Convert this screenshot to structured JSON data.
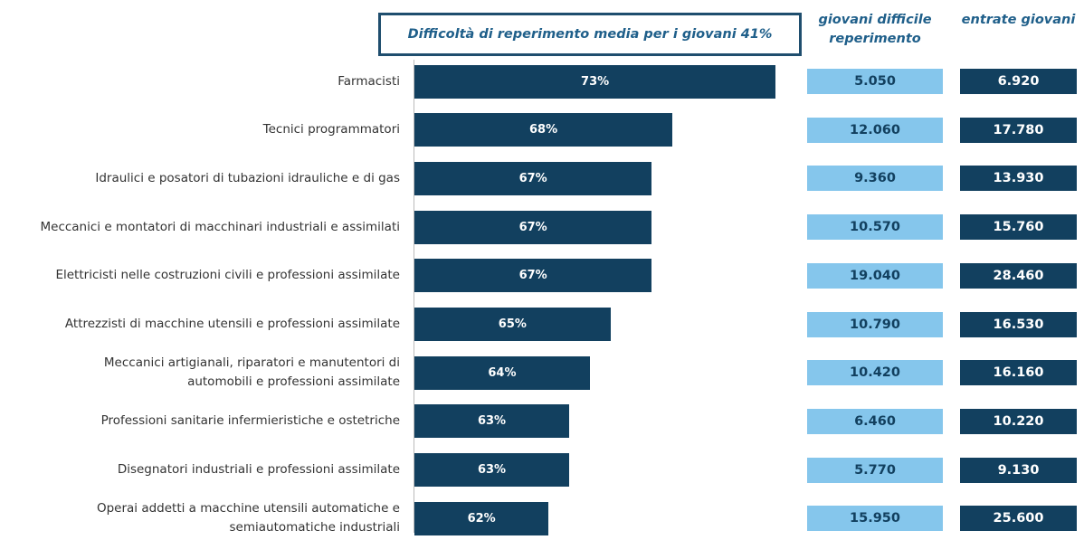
{
  "chart_data": {
    "type": "barh",
    "annotation": "Difficoltà di reperimento media per i giovani 41%",
    "categories": [
      "Farmacisti",
      "Tecnici programmatori",
      "Idraulici e posatori di tubazioni idrauliche e di gas",
      "Meccanici e montatori di macchinari industriali e assimilati",
      "Elettricisti nelle costruzioni civili e professioni assimilate",
      "Attrezzisti di macchine utensili e professioni assimilate",
      "Meccanici artigianali, riparatori e manutentori di automobili e professioni assimilate",
      "Professioni sanitarie infermieristiche e ostetriche",
      "Disegnatori industriali e professioni assimilate",
      "Operai addetti a macchine utensili automatiche e semiautomatiche industriali"
    ],
    "values": [
      73,
      68,
      67,
      67,
      67,
      65,
      64,
      63,
      63,
      62
    ],
    "value_labels": [
      "73%",
      "68%",
      "67%",
      "67%",
      "67%",
      "65%",
      "64%",
      "63%",
      "63%",
      "62%"
    ],
    "color": "#12405f",
    "xlim": [
      55.5,
      74
    ],
    "table_columns": [
      {
        "header": "giovani difficile reperimento",
        "color": "#85c6ec",
        "text_color": "#12405f",
        "values": [
          "5.050",
          "12.060",
          "9.360",
          "10.570",
          "19.040",
          "10.790",
          "10.420",
          "6.460",
          "5.770",
          "15.950"
        ]
      },
      {
        "header": "entrate giovani",
        "color": "#12405f",
        "text_color": "#ffffff",
        "values": [
          "6.920",
          "17.780",
          "13.930",
          "15.760",
          "28.460",
          "16.530",
          "16.160",
          "10.220",
          "9.130",
          "25.600"
        ]
      }
    ]
  }
}
